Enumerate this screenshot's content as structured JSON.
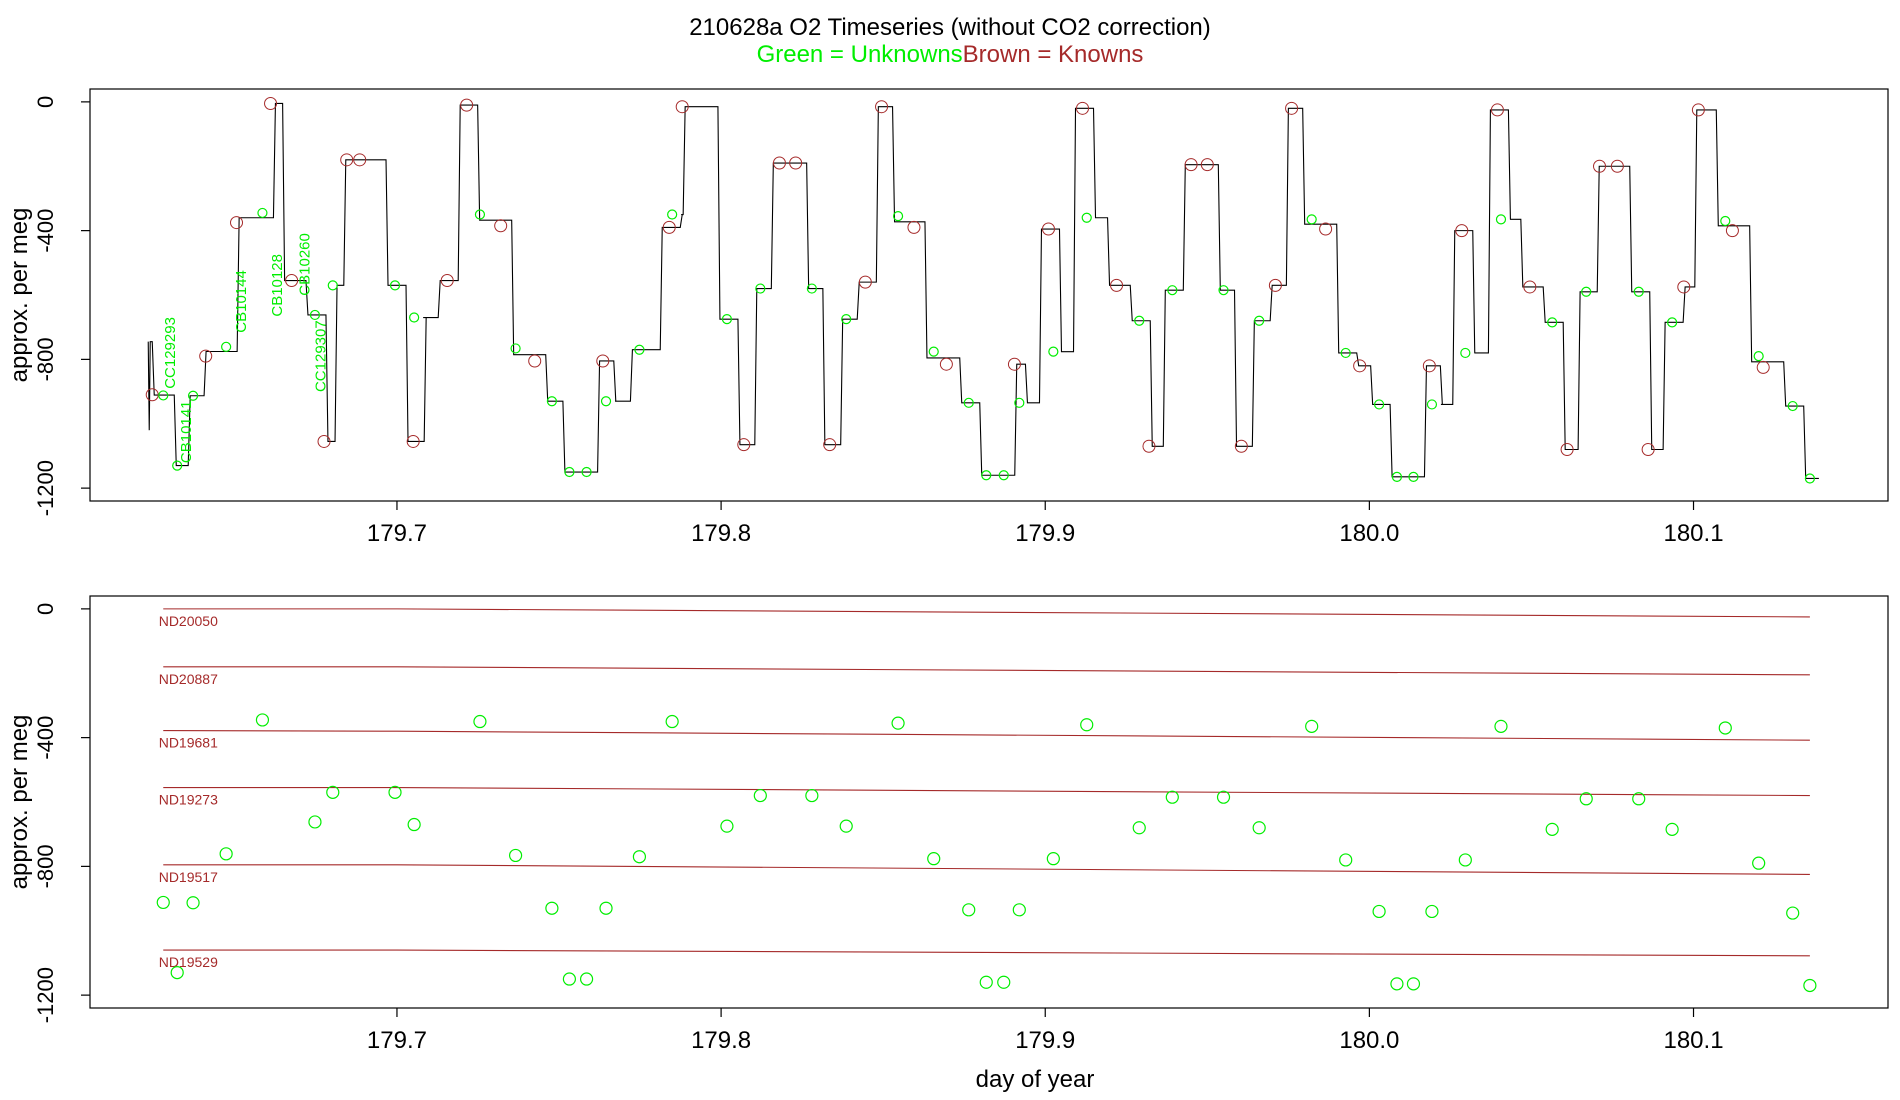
{
  "title": "210628a   O2 Timeseries (without CO2 correction)",
  "subtitle": {
    "unknowns": "Green = Unknowns",
    "knowns": "Brown = Knowns"
  },
  "colors": {
    "unknown": "#00ee00",
    "known": "#a52a2a",
    "axis": "#000000",
    "trace": "#000000"
  },
  "chart_data": [
    {
      "type": "line",
      "name": "timeseries",
      "xlabel": "",
      "ylabel": "approx. per meg",
      "xlim": [
        179.6053,
        180.16
      ],
      "ylim": [
        -1240,
        40
      ],
      "xticks": [
        179.7,
        179.8,
        179.9,
        180.0,
        180.1
      ],
      "xtick_labels": [
        "179.7",
        "179.8",
        "179.9",
        "180.0",
        "180.1"
      ],
      "yticks": [
        0,
        -400,
        -800,
        -1200
      ],
      "ytick_labels": [
        "0",
        "-400",
        "-800",
        "-1200"
      ],
      "sample_labels": [
        {
          "text": "CC129293",
          "x": 179.6315,
          "y": -780
        },
        {
          "text": "CB10141",
          "x": 179.6365,
          "y": -1025
        },
        {
          "text": "CB10144",
          "x": 179.6535,
          "y": -620
        },
        {
          "text": "CB10128",
          "x": 179.6645,
          "y": -570
        },
        {
          "text": "CB10260",
          "x": 179.673,
          "y": -505
        },
        {
          "text": "CC129307",
          "x": 179.678,
          "y": -790
        }
      ],
      "known_points": [
        {
          "x": 179.6245,
          "y": -910
        },
        {
          "x": 179.641,
          "y": -790
        },
        {
          "x": 179.6505,
          "y": -375
        },
        {
          "x": 179.661,
          "y": -5
        },
        {
          "x": 179.6675,
          "y": -555
        },
        {
          "x": 179.6775,
          "y": -1055
        },
        {
          "x": 179.6845,
          "y": -180
        },
        {
          "x": 179.6885,
          "y": -180
        },
        {
          "x": 179.705,
          "y": -1055
        },
        {
          "x": 179.7155,
          "y": -555
        },
        {
          "x": 179.7215,
          "y": -10
        },
        {
          "x": 179.732,
          "y": -385
        },
        {
          "x": 179.7425,
          "y": -805
        },
        {
          "x": 179.7635,
          "y": -805
        },
        {
          "x": 179.784,
          "y": -390
        },
        {
          "x": 179.788,
          "y": -15
        },
        {
          "x": 179.807,
          "y": -1065
        },
        {
          "x": 179.818,
          "y": -190
        },
        {
          "x": 179.823,
          "y": -190
        },
        {
          "x": 179.8335,
          "y": -1065
        },
        {
          "x": 179.8445,
          "y": -560
        },
        {
          "x": 179.8495,
          "y": -15
        },
        {
          "x": 179.8595,
          "y": -390
        },
        {
          "x": 179.8695,
          "y": -815
        },
        {
          "x": 179.8905,
          "y": -815
        },
        {
          "x": 179.901,
          "y": -395
        },
        {
          "x": 179.9115,
          "y": -20
        },
        {
          "x": 179.922,
          "y": -570
        },
        {
          "x": 179.932,
          "y": -1070
        },
        {
          "x": 179.945,
          "y": -195
        },
        {
          "x": 179.95,
          "y": -195
        },
        {
          "x": 179.9605,
          "y": -1070
        },
        {
          "x": 179.971,
          "y": -570
        },
        {
          "x": 179.976,
          "y": -20
        },
        {
          "x": 179.9865,
          "y": -395
        },
        {
          "x": 179.997,
          "y": -820
        },
        {
          "x": 180.0185,
          "y": -820
        },
        {
          "x": 180.0285,
          "y": -400
        },
        {
          "x": 180.0395,
          "y": -25
        },
        {
          "x": 180.0495,
          "y": -575
        },
        {
          "x": 180.061,
          "y": -1080
        },
        {
          "x": 180.071,
          "y": -200
        },
        {
          "x": 180.0765,
          "y": -200
        },
        {
          "x": 180.086,
          "y": -1080
        },
        {
          "x": 180.097,
          "y": -575
        },
        {
          "x": 180.1015,
          "y": -25
        },
        {
          "x": 180.112,
          "y": -400
        },
        {
          "x": 180.1215,
          "y": -825
        }
      ],
      "unknown_points": [
        {
          "x": 179.6279,
          "y": -912
        },
        {
          "x": 179.6322,
          "y": -1130
        },
        {
          "x": 179.6371,
          "y": -913
        },
        {
          "x": 179.6473,
          "y": -761
        },
        {
          "x": 179.6585,
          "y": -345
        },
        {
          "x": 179.6747,
          "y": -662
        },
        {
          "x": 179.6802,
          "y": -570
        },
        {
          "x": 179.6994,
          "y": -570
        },
        {
          "x": 179.7053,
          "y": -670
        },
        {
          "x": 179.7256,
          "y": -350
        },
        {
          "x": 179.7366,
          "y": -766
        },
        {
          "x": 179.7478,
          "y": -930
        },
        {
          "x": 179.7532,
          "y": -1150
        },
        {
          "x": 179.7585,
          "y": -1150
        },
        {
          "x": 179.7645,
          "y": -930
        },
        {
          "x": 179.7748,
          "y": -770
        },
        {
          "x": 179.7849,
          "y": -350
        },
        {
          "x": 179.8018,
          "y": -675
        },
        {
          "x": 179.8121,
          "y": -580
        },
        {
          "x": 179.828,
          "y": -580
        },
        {
          "x": 179.8386,
          "y": -675
        },
        {
          "x": 179.8546,
          "y": -355
        },
        {
          "x": 179.8656,
          "y": -776
        },
        {
          "x": 179.8764,
          "y": -935
        },
        {
          "x": 179.8818,
          "y": -1160
        },
        {
          "x": 179.8872,
          "y": -1160
        },
        {
          "x": 179.892,
          "y": -935
        },
        {
          "x": 179.9025,
          "y": -776
        },
        {
          "x": 179.9128,
          "y": -360
        },
        {
          "x": 179.929,
          "y": -680
        },
        {
          "x": 179.9392,
          "y": -585
        },
        {
          "x": 179.955,
          "y": -585
        },
        {
          "x": 179.966,
          "y": -680
        },
        {
          "x": 179.9822,
          "y": -365
        },
        {
          "x": 179.9927,
          "y": -780
        },
        {
          "x": 180.003,
          "y": -940
        },
        {
          "x": 180.0085,
          "y": -1165
        },
        {
          "x": 180.0136,
          "y": -1165
        },
        {
          "x": 180.0193,
          "y": -940
        },
        {
          "x": 180.0296,
          "y": -780
        },
        {
          "x": 180.0406,
          "y": -365
        },
        {
          "x": 180.0564,
          "y": -685
        },
        {
          "x": 180.0669,
          "y": -590
        },
        {
          "x": 180.0831,
          "y": -590
        },
        {
          "x": 180.0934,
          "y": -685
        },
        {
          "x": 180.1098,
          "y": -370
        },
        {
          "x": 180.1201,
          "y": -790
        },
        {
          "x": 180.1306,
          "y": -945
        },
        {
          "x": 180.1359,
          "y": -1170
        }
      ]
    },
    {
      "type": "scatter",
      "name": "residual_panel",
      "xlabel": "day of year",
      "ylabel": "approx. per meg",
      "xlim": [
        179.6053,
        180.16
      ],
      "ylim": [
        -1240,
        40
      ],
      "xticks": [
        179.7,
        179.8,
        179.9,
        180.0,
        180.1
      ],
      "xtick_labels": [
        "179.7",
        "179.8",
        "179.9",
        "180.0",
        "180.1"
      ],
      "yticks": [
        0,
        -400,
        -800,
        -1200
      ],
      "ytick_labels": [
        "0",
        "-400",
        "-800",
        "-1200"
      ],
      "reference_lines": [
        {
          "name": "ND20050",
          "x": [
            179.6279,
            179.7,
            180.1359
          ],
          "y": [
            0,
            0,
            -25
          ]
        },
        {
          "name": "ND20887",
          "x": [
            179.6279,
            179.7,
            180.1359
          ],
          "y": [
            -180,
            -180,
            -205
          ]
        },
        {
          "name": "ND19681",
          "x": [
            179.6279,
            179.7,
            180.1359
          ],
          "y": [
            -378,
            -380,
            -408
          ]
        },
        {
          "name": "ND19273",
          "x": [
            179.6279,
            179.7,
            180.1359
          ],
          "y": [
            -555,
            -555,
            -580
          ]
        },
        {
          "name": "ND19517",
          "x": [
            179.6279,
            179.7,
            180.1359
          ],
          "y": [
            -795,
            -795,
            -825
          ]
        },
        {
          "name": "ND19529",
          "x": [
            179.6279,
            179.7,
            180.1359
          ],
          "y": [
            -1060,
            -1060,
            -1078
          ]
        }
      ],
      "unknown_points": [
        {
          "x": 179.6279,
          "y": -912
        },
        {
          "x": 179.6322,
          "y": -1130
        },
        {
          "x": 179.6371,
          "y": -913
        },
        {
          "x": 179.6473,
          "y": -761
        },
        {
          "x": 179.6585,
          "y": -345
        },
        {
          "x": 179.6747,
          "y": -662
        },
        {
          "x": 179.6802,
          "y": -570
        },
        {
          "x": 179.6994,
          "y": -570
        },
        {
          "x": 179.7053,
          "y": -670
        },
        {
          "x": 179.7256,
          "y": -350
        },
        {
          "x": 179.7366,
          "y": -766
        },
        {
          "x": 179.7478,
          "y": -930
        },
        {
          "x": 179.7532,
          "y": -1150
        },
        {
          "x": 179.7585,
          "y": -1150
        },
        {
          "x": 179.7645,
          "y": -930
        },
        {
          "x": 179.7748,
          "y": -770
        },
        {
          "x": 179.7849,
          "y": -350
        },
        {
          "x": 179.8018,
          "y": -675
        },
        {
          "x": 179.8121,
          "y": -580
        },
        {
          "x": 179.828,
          "y": -580
        },
        {
          "x": 179.8386,
          "y": -675
        },
        {
          "x": 179.8546,
          "y": -355
        },
        {
          "x": 179.8656,
          "y": -776
        },
        {
          "x": 179.8764,
          "y": -935
        },
        {
          "x": 179.8818,
          "y": -1160
        },
        {
          "x": 179.8872,
          "y": -1160
        },
        {
          "x": 179.892,
          "y": -935
        },
        {
          "x": 179.9025,
          "y": -776
        },
        {
          "x": 179.9128,
          "y": -360
        },
        {
          "x": 179.929,
          "y": -680
        },
        {
          "x": 179.9392,
          "y": -585
        },
        {
          "x": 179.955,
          "y": -585
        },
        {
          "x": 179.966,
          "y": -680
        },
        {
          "x": 179.9822,
          "y": -365
        },
        {
          "x": 179.9927,
          "y": -780
        },
        {
          "x": 180.003,
          "y": -940
        },
        {
          "x": 180.0085,
          "y": -1165
        },
        {
          "x": 180.0136,
          "y": -1165
        },
        {
          "x": 180.0193,
          "y": -940
        },
        {
          "x": 180.0296,
          "y": -780
        },
        {
          "x": 180.0406,
          "y": -365
        },
        {
          "x": 180.0564,
          "y": -685
        },
        {
          "x": 180.0669,
          "y": -590
        },
        {
          "x": 180.0831,
          "y": -590
        },
        {
          "x": 180.0934,
          "y": -685
        },
        {
          "x": 180.1098,
          "y": -370
        },
        {
          "x": 180.1201,
          "y": -790
        },
        {
          "x": 180.1306,
          "y": -945
        },
        {
          "x": 180.1359,
          "y": -1170
        }
      ]
    }
  ]
}
